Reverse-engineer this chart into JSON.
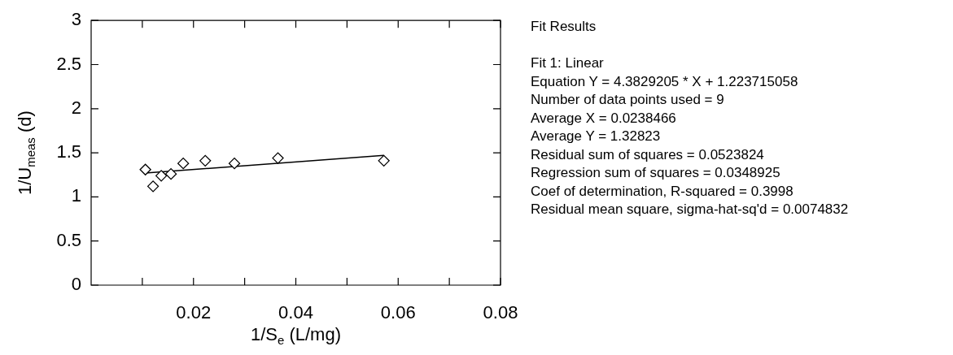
{
  "chart_data": {
    "type": "scatter",
    "xlabel": "1/S$_{e}$ (L/mg)",
    "ylabel": "1/U$_{meas}$ (d)",
    "xlim": [
      0,
      0.08
    ],
    "xticks": [
      {
        "value": 0.01,
        "label": null
      },
      0.02,
      {
        "value": 0.03,
        "label": null
      },
      0.04,
      {
        "value": 0.05,
        "label": null
      },
      0.06,
      {
        "value": 0.07,
        "label": null
      },
      0.08
    ],
    "ylim": [
      0,
      3
    ],
    "yticks": [
      0,
      0.5,
      1,
      1.5,
      2,
      2.5,
      3
    ],
    "grid": false,
    "legend": false,
    "series": [
      {
        "type": "scatter",
        "color": "#000000",
        "marker": "diamond",
        "x": [
          0.0106,
          0.0121,
          0.0137,
          0.0156,
          0.018,
          0.0223,
          0.028,
          0.0365,
          0.0572
        ],
        "values": [
          1.31,
          1.12,
          1.24,
          1.26,
          1.38,
          1.41,
          1.38,
          1.44,
          1.41
        ]
      },
      {
        "type": "line",
        "color": "#000000",
        "marker": "none",
        "line_style": "solid",
        "x": [
          0.0106,
          0.0572
        ],
        "values": [
          1.27,
          1.47
        ]
      }
    ],
    "annotations": [
      "Fit Results",
      "Fit 1: Linear",
      "Equation Y = 4.3829205 * X + 1.223715058",
      "Number of data points used = 9",
      "Average X = 0.0238466",
      "Average Y = 1.32823",
      "Residual sum of squares = 0.0523824",
      "Regression sum of squares = 0.0348925",
      "Coef of determination, R-squared = 0.3998",
      "Residual mean square, sigma-hat-sq'd = 0.0074832"
    ]
  }
}
